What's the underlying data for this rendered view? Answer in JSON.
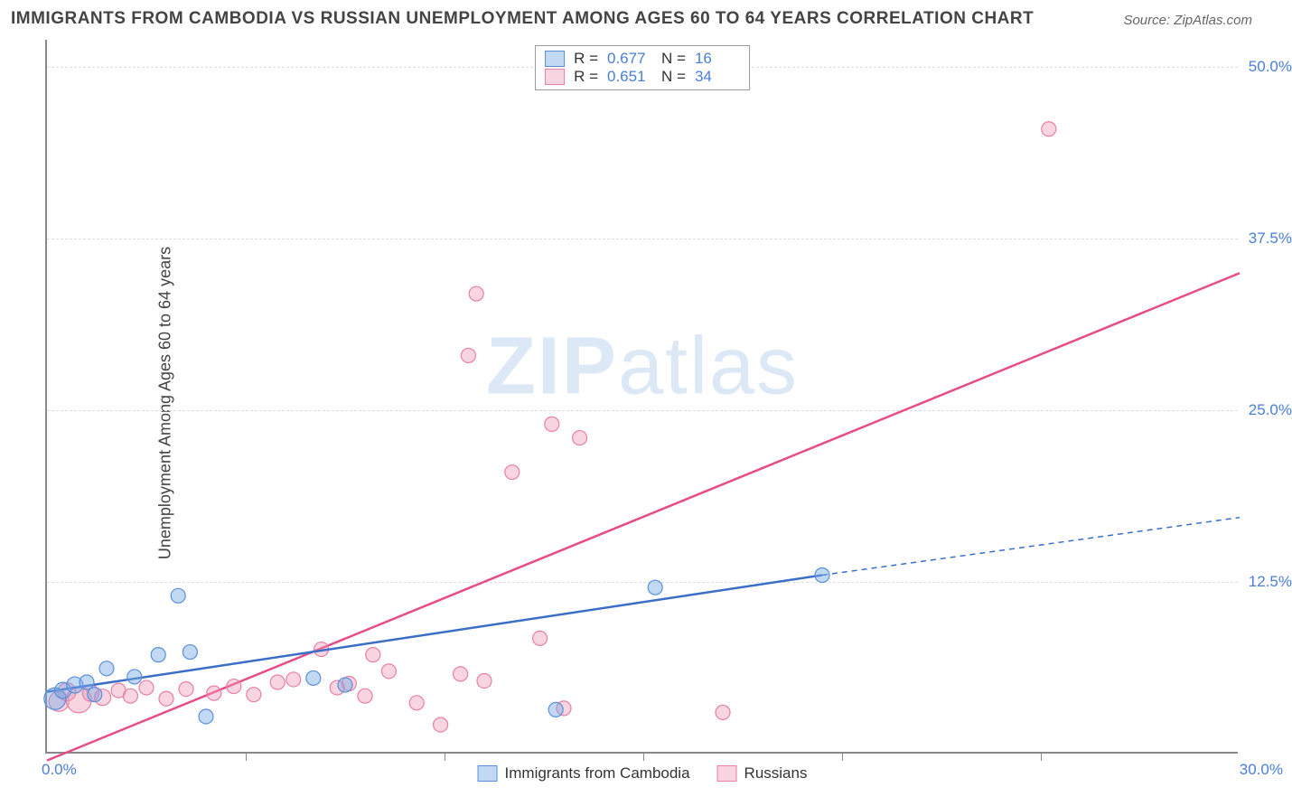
{
  "title": "IMMIGRANTS FROM CAMBODIA VS RUSSIAN UNEMPLOYMENT AMONG AGES 60 TO 64 YEARS CORRELATION CHART",
  "source": "Source: ZipAtlas.com",
  "ylabel": "Unemployment Among Ages 60 to 64 years",
  "watermark_a": "ZIP",
  "watermark_b": "atlas",
  "chart": {
    "type": "scatter",
    "xlim": [
      0,
      30
    ],
    "ylim": [
      0,
      52
    ],
    "x_tick_step": 5,
    "y_ticks": [
      12.5,
      25.0,
      37.5,
      50.0
    ],
    "ytick_labels": [
      "12.5%",
      "25.0%",
      "37.5%",
      "50.0%"
    ],
    "xlim_labels": [
      "0.0%",
      "30.0%"
    ],
    "background_color": "#ffffff",
    "grid_color": "#dddddd",
    "axis_color": "#888888",
    "series": {
      "blue": {
        "label": "Immigrants from Cambodia",
        "color_fill": "rgba(120,170,230,0.45)",
        "color_stroke": "#5a8fd8",
        "line_color": "#3b6fc7",
        "line_width": 2.5,
        "R": "0.677",
        "N": "16",
        "points": [
          {
            "x": 0.2,
            "y": 4.0,
            "r": 12
          },
          {
            "x": 0.4,
            "y": 4.6,
            "r": 9
          },
          {
            "x": 0.7,
            "y": 5.0,
            "r": 9
          },
          {
            "x": 1.0,
            "y": 5.2,
            "r": 8
          },
          {
            "x": 1.2,
            "y": 4.3,
            "r": 8
          },
          {
            "x": 1.5,
            "y": 6.2,
            "r": 8
          },
          {
            "x": 2.2,
            "y": 5.6,
            "r": 8
          },
          {
            "x": 2.8,
            "y": 7.2,
            "r": 8
          },
          {
            "x": 3.3,
            "y": 11.5,
            "r": 8
          },
          {
            "x": 3.6,
            "y": 7.4,
            "r": 8
          },
          {
            "x": 4.0,
            "y": 2.7,
            "r": 8
          },
          {
            "x": 6.7,
            "y": 5.5,
            "r": 8
          },
          {
            "x": 7.5,
            "y": 5.0,
            "r": 8
          },
          {
            "x": 12.8,
            "y": 3.2,
            "r": 8
          },
          {
            "x": 15.3,
            "y": 12.1,
            "r": 8
          },
          {
            "x": 19.5,
            "y": 13.0,
            "r": 8
          }
        ],
        "trend": {
          "x1": 0,
          "y1": 4.5,
          "x2": 19.5,
          "y2": 13.0
        },
        "trend_ext": {
          "x1": 19.5,
          "y1": 13.0,
          "x2": 30,
          "y2": 17.2
        }
      },
      "pink": {
        "label": "Russians",
        "color_fill": "rgba(240,150,180,0.40)",
        "color_stroke": "#e87fa5",
        "line_color": "#e64d84",
        "line_width": 2.5,
        "R": "0.651",
        "N": "34",
        "points": [
          {
            "x": 0.3,
            "y": 3.8,
            "r": 11
          },
          {
            "x": 0.5,
            "y": 4.5,
            "r": 10
          },
          {
            "x": 0.8,
            "y": 3.9,
            "r": 14
          },
          {
            "x": 1.1,
            "y": 4.4,
            "r": 9
          },
          {
            "x": 1.4,
            "y": 4.1,
            "r": 9
          },
          {
            "x": 1.8,
            "y": 4.6,
            "r": 8
          },
          {
            "x": 2.1,
            "y": 4.2,
            "r": 8
          },
          {
            "x": 2.5,
            "y": 4.8,
            "r": 8
          },
          {
            "x": 3.0,
            "y": 4.0,
            "r": 8
          },
          {
            "x": 3.5,
            "y": 4.7,
            "r": 8
          },
          {
            "x": 4.2,
            "y": 4.4,
            "r": 8
          },
          {
            "x": 4.7,
            "y": 4.9,
            "r": 8
          },
          {
            "x": 5.2,
            "y": 4.3,
            "r": 8
          },
          {
            "x": 5.8,
            "y": 5.2,
            "r": 8
          },
          {
            "x": 6.2,
            "y": 5.4,
            "r": 8
          },
          {
            "x": 6.9,
            "y": 7.6,
            "r": 8
          },
          {
            "x": 7.3,
            "y": 4.8,
            "r": 8
          },
          {
            "x": 7.6,
            "y": 5.1,
            "r": 8
          },
          {
            "x": 8.0,
            "y": 4.2,
            "r": 8
          },
          {
            "x": 8.2,
            "y": 7.2,
            "r": 8
          },
          {
            "x": 8.6,
            "y": 6.0,
            "r": 8
          },
          {
            "x": 9.3,
            "y": 3.7,
            "r": 8
          },
          {
            "x": 9.9,
            "y": 2.1,
            "r": 8
          },
          {
            "x": 10.4,
            "y": 5.8,
            "r": 8
          },
          {
            "x": 10.6,
            "y": 29.0,
            "r": 8
          },
          {
            "x": 10.8,
            "y": 33.5,
            "r": 8
          },
          {
            "x": 11.0,
            "y": 5.3,
            "r": 8
          },
          {
            "x": 11.7,
            "y": 20.5,
            "r": 8
          },
          {
            "x": 12.4,
            "y": 8.4,
            "r": 8
          },
          {
            "x": 12.7,
            "y": 24.0,
            "r": 8
          },
          {
            "x": 13.4,
            "y": 23.0,
            "r": 8
          },
          {
            "x": 13.0,
            "y": 3.3,
            "r": 8
          },
          {
            "x": 17.0,
            "y": 3.0,
            "r": 8
          },
          {
            "x": 25.2,
            "y": 45.5,
            "r": 8
          }
        ],
        "trend": {
          "x1": 0,
          "y1": -0.5,
          "x2": 30,
          "y2": 35.0
        }
      }
    }
  },
  "legend_top_rows": [
    {
      "swatch": "blue",
      "R_label": "R =",
      "R": "0.677",
      "N_label": "N =",
      "N": "16"
    },
    {
      "swatch": "pink",
      "R_label": "R =",
      "R": "0.651",
      "N_label": "N =",
      "N": "34"
    }
  ]
}
